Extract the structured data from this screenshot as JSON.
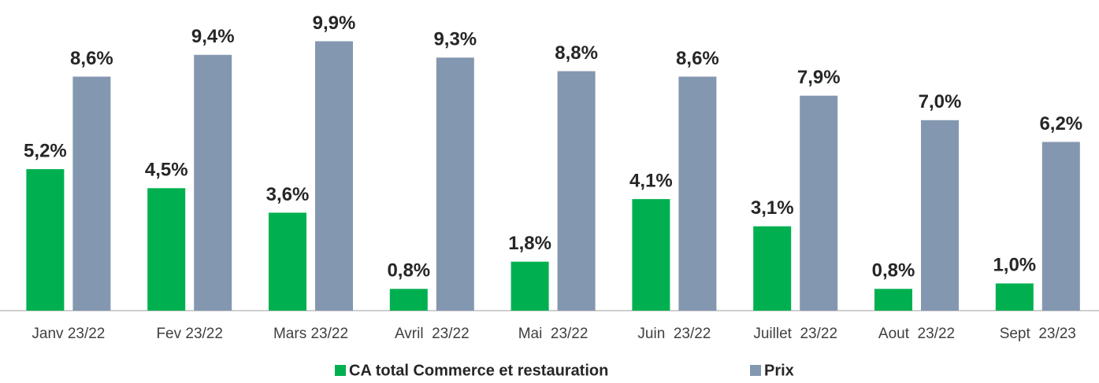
{
  "chart_data": {
    "type": "bar",
    "categories": [
      "Janv 23/22",
      "Fev 23/22",
      "Mars 23/22",
      "Avril  23/22",
      "Mai  23/22",
      "Juin  23/22",
      "Juillet  23/22",
      "Aout  23/22",
      "Sept  23/23"
    ],
    "series": [
      {
        "name": "CA total Commerce et restauration",
        "color": "#00b050",
        "values": [
          5.2,
          4.5,
          3.6,
          0.8,
          1.8,
          4.1,
          3.1,
          0.8,
          1.0
        ],
        "value_labels": [
          "5,2%",
          "4,5%",
          "3,6%",
          "0,8%",
          "1,8%",
          "4,1%",
          "3,1%",
          "0,8%",
          "1,0%"
        ]
      },
      {
        "name": "Prix",
        "color": "#8497b0",
        "values": [
          8.6,
          9.4,
          9.9,
          9.3,
          8.8,
          8.6,
          7.9,
          7.0,
          6.2
        ],
        "value_labels": [
          "8,6%",
          "9,4%",
          "9,9%",
          "9,3%",
          "8,8%",
          "8,6%",
          "7,9%",
          "7,0%",
          "6,2%"
        ]
      }
    ],
    "ylim": [
      0,
      10
    ]
  }
}
